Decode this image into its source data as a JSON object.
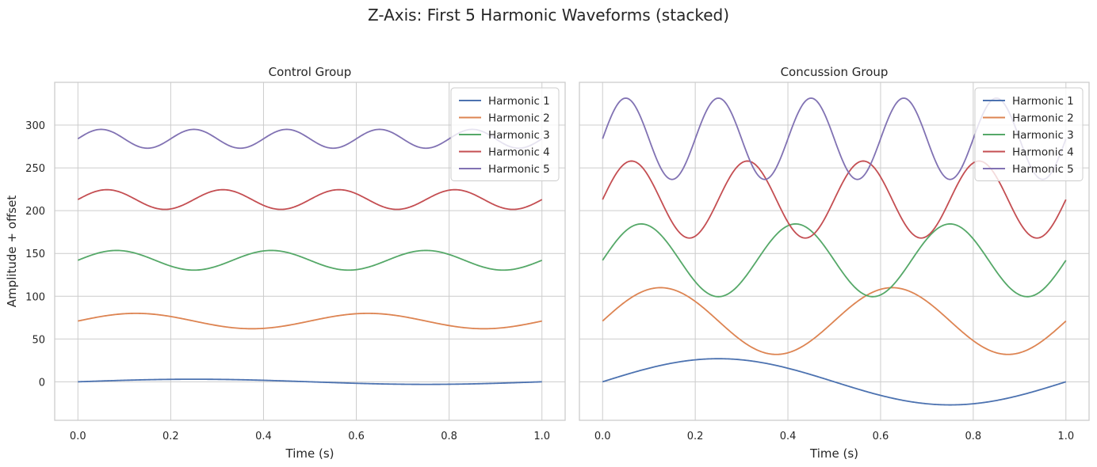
{
  "figure": {
    "suptitle": "Z-Axis: First 5 Harmonic Waveforms (stacked)"
  },
  "chart_data": [
    {
      "type": "line",
      "title": "Control Group",
      "xlabel": "Time (s)",
      "ylabel": "Amplitude + offset",
      "xlim": [
        -0.05,
        1.05
      ],
      "ylim": [
        -45,
        350
      ],
      "xticks": [
        0.0,
        0.2,
        0.4,
        0.6,
        0.8,
        1.0
      ],
      "xtick_labels": [
        "0.0",
        "0.2",
        "0.4",
        "0.6",
        "0.8",
        "1.0"
      ],
      "yticks": [
        0,
        50,
        100,
        150,
        200,
        250,
        300
      ],
      "ytick_labels": [
        "0",
        "50",
        "100",
        "150",
        "200",
        "250",
        "300"
      ],
      "grid": true,
      "legend": "top-right",
      "series": [
        {
          "name": "Harmonic 1",
          "color": "#4c72b0",
          "offset": 0,
          "amplitude": 3,
          "frequency_hz": 1
        },
        {
          "name": "Harmonic 2",
          "color": "#dd8452",
          "offset": 71,
          "amplitude": 9,
          "frequency_hz": 2
        },
        {
          "name": "Harmonic 3",
          "color": "#55a868",
          "offset": 142,
          "amplitude": 11.5,
          "frequency_hz": 3
        },
        {
          "name": "Harmonic 4",
          "color": "#c44e52",
          "offset": 213,
          "amplitude": 11.5,
          "frequency_hz": 4
        },
        {
          "name": "Harmonic 5",
          "color": "#8172b3",
          "offset": 284,
          "amplitude": 11,
          "frequency_hz": 5
        }
      ]
    },
    {
      "type": "line",
      "title": "Concussion Group",
      "xlabel": "Time (s)",
      "ylabel": "",
      "xlim": [
        -0.05,
        1.05
      ],
      "ylim": [
        -45,
        350
      ],
      "xticks": [
        0.0,
        0.2,
        0.4,
        0.6,
        0.8,
        1.0
      ],
      "xtick_labels": [
        "0.0",
        "0.2",
        "0.4",
        "0.6",
        "0.8",
        "1.0"
      ],
      "yticks": [
        0,
        50,
        100,
        150,
        200,
        250,
        300
      ],
      "ytick_labels": [
        "",
        "",
        "",
        "",
        "",
        "",
        ""
      ],
      "grid": true,
      "legend": "top-right",
      "series": [
        {
          "name": "Harmonic 1",
          "color": "#4c72b0",
          "offset": 0,
          "amplitude": 27,
          "frequency_hz": 1
        },
        {
          "name": "Harmonic 2",
          "color": "#dd8452",
          "offset": 71,
          "amplitude": 39,
          "frequency_hz": 2
        },
        {
          "name": "Harmonic 3",
          "color": "#55a868",
          "offset": 142,
          "amplitude": 42.5,
          "frequency_hz": 3
        },
        {
          "name": "Harmonic 4",
          "color": "#c44e52",
          "offset": 213,
          "amplitude": 45,
          "frequency_hz": 4
        },
        {
          "name": "Harmonic 5",
          "color": "#8172b3",
          "offset": 284,
          "amplitude": 47.5,
          "frequency_hz": 5
        }
      ]
    }
  ]
}
